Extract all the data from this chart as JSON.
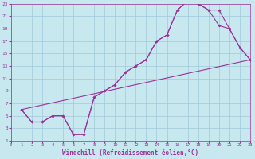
{
  "xlabel": "Windchill (Refroidissement éolien,°C)",
  "bg_color": "#c8e8f0",
  "grid_color": "#a0c8d8",
  "line_color": "#993399",
  "xmin": 0,
  "xmax": 23,
  "ymin": 1,
  "ymax": 23,
  "yticks": [
    1,
    3,
    5,
    7,
    9,
    11,
    13,
    15,
    17,
    19,
    21,
    23
  ],
  "xticks": [
    0,
    1,
    2,
    3,
    4,
    5,
    6,
    7,
    8,
    9,
    10,
    11,
    12,
    13,
    14,
    15,
    16,
    17,
    18,
    19,
    20,
    21,
    22,
    23
  ],
  "curve1_x": [
    1,
    2,
    3,
    4,
    5,
    6,
    7,
    8,
    9,
    10,
    11,
    12,
    13,
    14,
    15,
    16,
    17,
    18,
    19,
    20,
    21,
    22,
    23
  ],
  "curve1_y": [
    6,
    4,
    4,
    5,
    5,
    2,
    2,
    8,
    9,
    10,
    12,
    13,
    14,
    17,
    18,
    22,
    23.5,
    23,
    22,
    22,
    19,
    16,
    14
  ],
  "curve2_x": [
    1,
    2,
    3,
    4,
    5,
    6,
    7,
    8,
    9,
    10,
    11,
    12,
    13,
    14,
    15,
    16,
    17,
    18,
    19,
    20,
    21,
    22,
    23
  ],
  "curve2_y": [
    6,
    4,
    4,
    5,
    5,
    2,
    2,
    8,
    9,
    10,
    12,
    13,
    14,
    17,
    18,
    22,
    23.5,
    23,
    22,
    19.5,
    19,
    16,
    14
  ],
  "curve3_x": [
    1,
    23
  ],
  "curve3_y": [
    6,
    14
  ]
}
